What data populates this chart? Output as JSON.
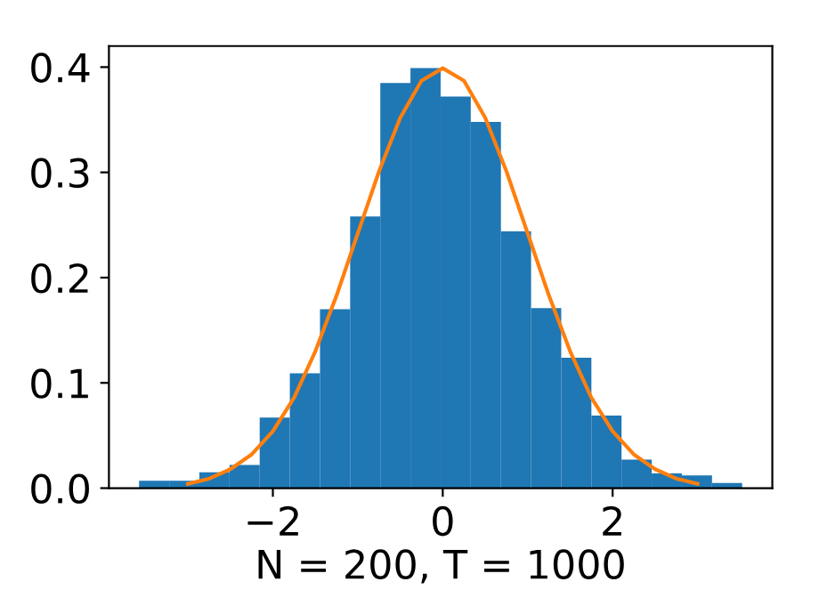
{
  "chart_data": {
    "type": "histogram",
    "xlabel": "N = 200, T = 1000",
    "bins": [
      -3.575,
      -3.22,
      -2.865,
      -2.51,
      -2.155,
      -1.8,
      -1.445,
      -1.09,
      -0.735,
      -0.38,
      -0.025,
      0.33,
      0.685,
      1.04,
      1.395,
      1.75,
      2.105,
      2.46,
      2.815,
      3.17,
      3.525
    ],
    "series": [
      {
        "color": "#1f77b4",
        "values": [
          0.007,
          0.007,
          0.015,
          0.022,
          0.067,
          0.109,
          0.17,
          0.258,
          0.385,
          0.399,
          0.372,
          0.348,
          0.244,
          0.171,
          0.124,
          0.069,
          0.027,
          0.014,
          0.012,
          0.005
        ]
      },
      {
        "type": "line",
        "color": "#ff7f0e",
        "x": [
          -3,
          -2.75,
          -2.5,
          -2.25,
          -2,
          -1.75,
          -1.5,
          -1.25,
          -1,
          -0.75,
          -0.5,
          -0.25,
          0,
          0.25,
          0.5,
          0.75,
          1,
          1.25,
          1.5,
          1.75,
          2,
          2.25,
          2.5,
          2.75,
          3
        ],
        "values": [
          0.004,
          0.009,
          0.018,
          0.032,
          0.054,
          0.086,
          0.13,
          0.183,
          0.242,
          0.301,
          0.352,
          0.387,
          0.399,
          0.387,
          0.352,
          0.301,
          0.242,
          0.183,
          0.13,
          0.086,
          0.054,
          0.032,
          0.018,
          0.009,
          0.004
        ]
      }
    ],
    "xlim": [
      -3.93,
      3.88
    ],
    "xticks": [
      -2,
      0,
      2
    ],
    "ylim": [
      0,
      0.42
    ],
    "yticks": [
      {
        "value": 0,
        "label": "0.0"
      },
      0.1,
      0.2,
      0.3,
      0.4
    ],
    "grid": false
  }
}
